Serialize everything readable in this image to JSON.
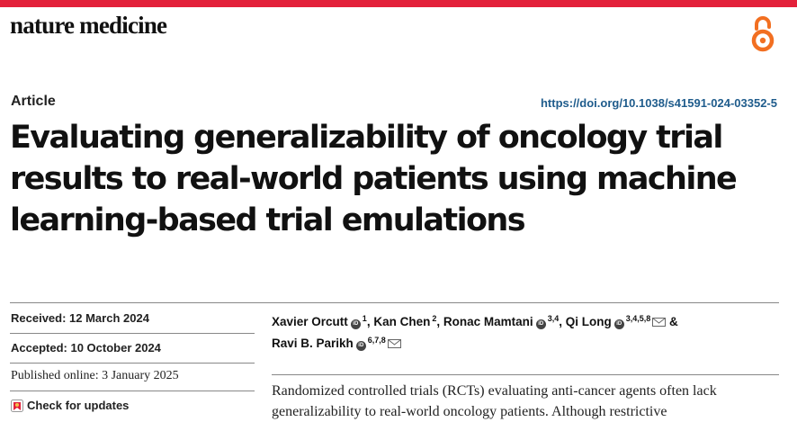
{
  "journal": {
    "name": "nature medicine"
  },
  "icons": {
    "open_access": "open-access-icon",
    "orcid": "orcid-icon",
    "mail": "mail-icon",
    "check_updates": "crossmark-icon"
  },
  "colors": {
    "top_bar": "#e3203a",
    "open_access": "#f26f21",
    "doi_link": "#1f5c8c"
  },
  "article": {
    "type": "Article",
    "doi": "https://doi.org/10.1038/s41591-024-03352-5",
    "title": "Evaluating generalizability of oncology trial results to real-world patients using machine learning-based trial emulations"
  },
  "dates": {
    "received": "Received: 12 March 2024",
    "accepted": "Accepted: 10 October 2024",
    "published": "Published online: 3 January 2025"
  },
  "check_updates": {
    "label": "Check for updates"
  },
  "authors": [
    {
      "name": "Xavier Orcutt",
      "aff": "1"
    },
    {
      "name": "Kan Chen",
      "aff": "2"
    },
    {
      "name": "Ronac Mamtani",
      "aff": "3,4"
    },
    {
      "name": "Qi Long",
      "aff": "3,4,5,8"
    },
    {
      "name": "Ravi B. Parikh",
      "aff": "6,7,8"
    }
  ],
  "authors_separators": {
    "comma": ",",
    "ampersand": "&"
  },
  "abstract": {
    "text": "Randomized controlled trials (RCTs) evaluating anti-cancer agents often lack generalizability to real-world oncology patients. Although restrictive"
  }
}
